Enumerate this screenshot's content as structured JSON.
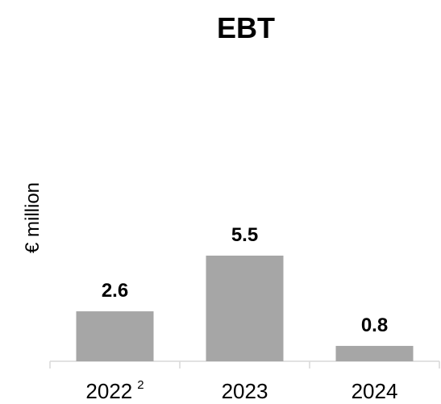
{
  "chart_data": {
    "type": "bar",
    "title": "EBT",
    "ylabel": "€ million",
    "xlabel": "",
    "categories": [
      "2022",
      "2023",
      "2024"
    ],
    "category_footnotes": [
      "2",
      "",
      ""
    ],
    "values": [
      2.6,
      5.5,
      0.8
    ],
    "data_labels": [
      "2.6",
      "5.5",
      "0.8"
    ],
    "ylim": [
      0,
      5.5
    ],
    "grid": false,
    "legend": "none",
    "bar_color": "#a6a6a6",
    "axis_color": "#d9d9d9"
  }
}
